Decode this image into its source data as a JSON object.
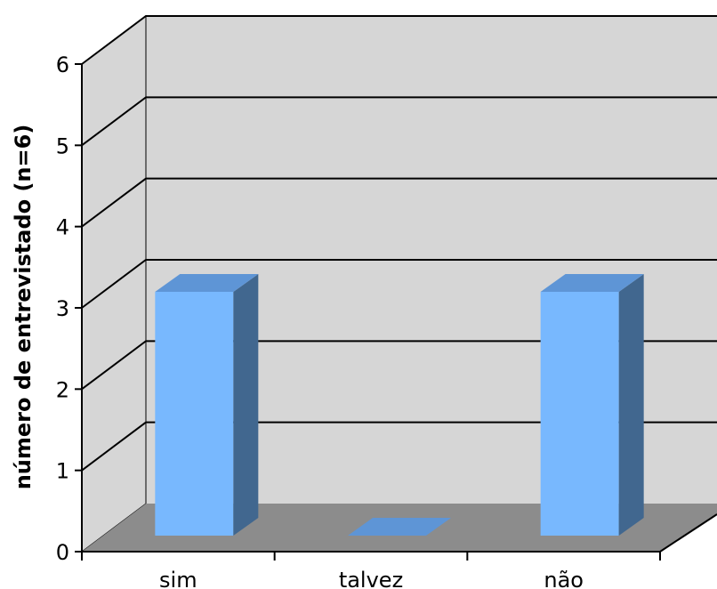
{
  "chart_data": {
    "type": "bar",
    "title": "",
    "xlabel": "",
    "ylabel": "número de entrevistado (n=6)",
    "categories": [
      "sim",
      "talvez",
      "não"
    ],
    "values": [
      3,
      0,
      3
    ],
    "ylim": [
      0,
      6
    ],
    "yticks": [
      "0",
      "1",
      "2",
      "3",
      "4",
      "5",
      "6"
    ],
    "grid": true,
    "legend": "none",
    "three_d": true,
    "colors": {
      "bar_front": "#78b8fe",
      "bar_top": "#5e95d6",
      "bar_side": "#41678f",
      "wall": "#d6d6d6",
      "floor": "#8c8c8c",
      "gridline": "#000000"
    }
  }
}
